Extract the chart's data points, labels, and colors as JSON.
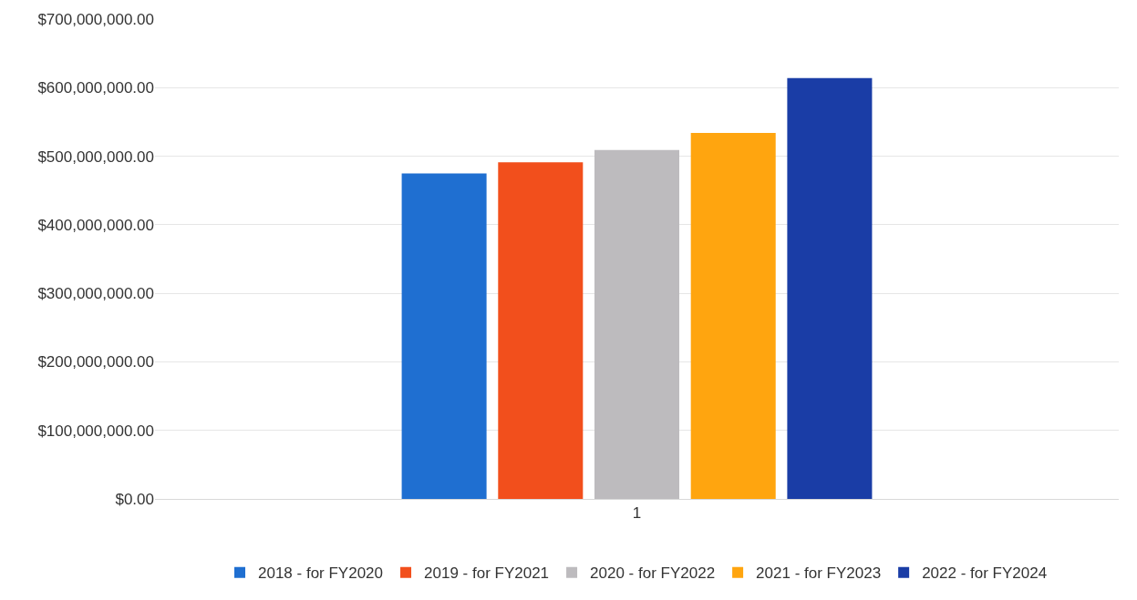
{
  "chart_data": {
    "type": "bar",
    "categories": [
      "1"
    ],
    "series": [
      {
        "name": "2018 - for FY2020",
        "color": "#1f6fd1",
        "values": [
          475000000
        ]
      },
      {
        "name": "2019 - for FY2021",
        "color": "#f24f1c",
        "values": [
          491000000
        ]
      },
      {
        "name": "2020 - for FY2022",
        "color": "#bdbbbe",
        "values": [
          509000000
        ]
      },
      {
        "name": "2021 - for FY2023",
        "color": "#ffa50f",
        "values": [
          534000000
        ]
      },
      {
        "name": "2022 - for FY2024",
        "color": "#1a3da6",
        "values": [
          614000000
        ]
      }
    ],
    "ylim": [
      0,
      700000000
    ],
    "yticks": [
      {
        "value": 0,
        "label": "$0.00"
      },
      {
        "value": 100000000,
        "label": "$100,000,000.00"
      },
      {
        "value": 200000000,
        "label": "$200,000,000.00"
      },
      {
        "value": 300000000,
        "label": "$300,000,000.00"
      },
      {
        "value": 400000000,
        "label": "$400,000,000.00"
      },
      {
        "value": 500000000,
        "label": "$500,000,000.00"
      },
      {
        "value": 600000000,
        "label": "$600,000,000.00"
      },
      {
        "value": 700000000,
        "label": "$700,000,000.00"
      }
    ],
    "grid": "y",
    "legend": "bottom"
  }
}
